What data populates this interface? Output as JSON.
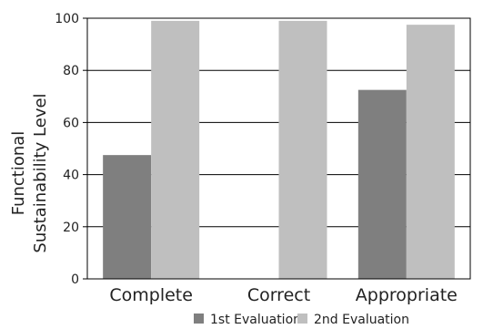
{
  "chart_data": {
    "type": "bar",
    "categories": [
      "Complete",
      "Correct",
      "Appropriate"
    ],
    "series": [
      {
        "name": "1st Evaluation",
        "values": [
          47.5,
          0,
          72.5
        ],
        "color": "#7f7f7f"
      },
      {
        "name": "2nd Evaluation",
        "values": [
          99,
          99,
          97.5
        ],
        "color": "#bfbfbf"
      }
    ],
    "ylabel_lines": [
      "Functional",
      "Sustainability Level"
    ],
    "ylim": [
      0,
      100
    ],
    "yticks": [
      0,
      20,
      40,
      60,
      80,
      100
    ],
    "grid": true,
    "legend_position": "bottom"
  }
}
